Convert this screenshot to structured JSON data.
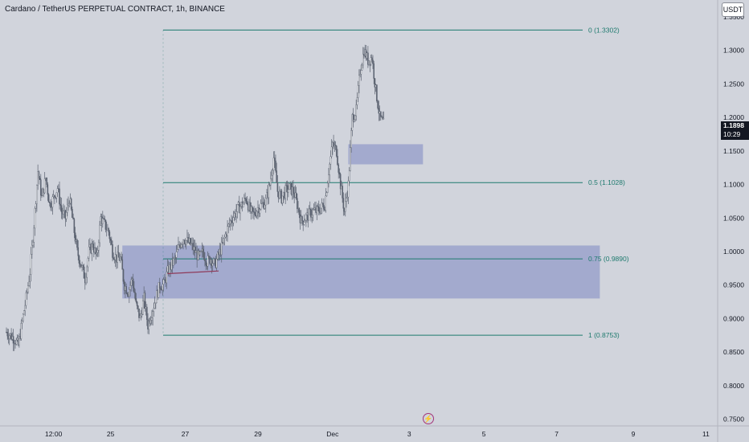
{
  "header": {
    "title": "Cardano / TetherUS PERPETUAL CONTRACT, 1h, BINANCE",
    "currency_button": "USDT"
  },
  "last_price": {
    "price": "1.1898",
    "countdown": "10:29"
  },
  "event_icon": {
    "name": "lightning-icon",
    "glyph": "⚡",
    "color": "#a3347a"
  },
  "colors": {
    "background": "#d1d4dc",
    "fib_line": "#1e7a6e",
    "zone_fill": "#7d86c2",
    "candle": "#5b6270",
    "trendline": "#8e3a5a"
  },
  "chart_data": {
    "type": "candlestick",
    "symbol": "Cardano / TetherUS PERPETUAL CONTRACT",
    "interval": "1h",
    "exchange": "BINANCE",
    "y_axis": {
      "ticks": [
        "0.7500",
        "0.8000",
        "0.8500",
        "0.9000",
        "0.9500",
        "1.0000",
        "1.0500",
        "1.1000",
        "1.1500",
        "1.2000",
        "1.2500",
        "1.3000",
        "1.3500"
      ],
      "range": [
        0.74,
        1.375
      ]
    },
    "x_axis": {
      "ticks": [
        "12:00",
        "25",
        "27",
        "29",
        "Dec",
        "3",
        "5",
        "7",
        "9",
        "11"
      ],
      "range_x": [
        0,
        180
      ]
    },
    "fibonacci": [
      {
        "label": "0 (1.3302)",
        "value": 1.3302
      },
      {
        "label": "0.5 (1.1028)",
        "value": 1.1028
      },
      {
        "label": "0.75 (0.9890)",
        "value": 0.989
      },
      {
        "label": "1 (0.8753)",
        "value": 0.8753
      }
    ],
    "zones": [
      {
        "from_x": 29.5,
        "to_x": 151,
        "low": 0.93,
        "high": 1.009
      },
      {
        "from_x": 87,
        "to_x": 106,
        "low": 1.13,
        "high": 1.16
      }
    ],
    "trendline": {
      "x1": 41,
      "y1": 0.967,
      "x2": 54,
      "y2": 0.971
    },
    "close_path": [
      [
        0,
        0.88
      ],
      [
        1,
        0.875
      ],
      [
        2,
        0.87
      ],
      [
        3,
        0.86
      ],
      [
        4,
        0.895
      ],
      [
        5,
        0.93
      ],
      [
        6,
        0.97
      ],
      [
        7,
        1.04
      ],
      [
        8,
        1.12
      ],
      [
        9,
        1.08
      ],
      [
        10,
        1.11
      ],
      [
        11,
        1.07
      ],
      [
        12,
        1.08
      ],
      [
        13,
        1.095
      ],
      [
        14,
        1.06
      ],
      [
        15,
        1.05
      ],
      [
        16,
        1.08
      ],
      [
        17,
        1.04
      ],
      [
        18,
        1.0
      ],
      [
        19,
        0.98
      ],
      [
        20,
        0.96
      ],
      [
        21,
        1.0
      ],
      [
        22,
        1.01
      ],
      [
        23,
        0.99
      ],
      [
        24,
        1.05
      ],
      [
        25,
        1.04
      ],
      [
        26,
        1.03
      ],
      [
        27,
        1.0
      ],
      [
        28,
        0.99
      ],
      [
        29,
        0.99
      ],
      [
        30,
        0.95
      ],
      [
        31,
        0.94
      ],
      [
        32,
        0.96
      ],
      [
        33,
        0.92
      ],
      [
        34,
        0.9
      ],
      [
        35,
        0.93
      ],
      [
        36,
        0.89
      ],
      [
        37,
        0.91
      ],
      [
        38,
        0.93
      ],
      [
        39,
        0.95
      ],
      [
        40,
        0.95
      ],
      [
        41,
        0.97
      ],
      [
        42,
        0.98
      ],
      [
        43,
        0.99
      ],
      [
        44,
        1.01
      ],
      [
        45,
        1.02
      ],
      [
        46,
        1.015
      ],
      [
        47,
        1.01
      ],
      [
        48,
        1.0
      ],
      [
        49,
        0.99
      ],
      [
        50,
        1.0
      ],
      [
        51,
        0.985
      ],
      [
        52,
        0.99
      ],
      [
        53,
        0.98
      ],
      [
        54,
        0.995
      ],
      [
        55,
        1.01
      ],
      [
        56,
        1.03
      ],
      [
        57,
        1.045
      ],
      [
        58,
        1.055
      ],
      [
        59,
        1.065
      ],
      [
        60,
        1.07
      ],
      [
        61,
        1.08
      ],
      [
        62,
        1.06
      ],
      [
        63,
        1.055
      ],
      [
        64,
        1.065
      ],
      [
        65,
        1.07
      ],
      [
        66,
        1.075
      ],
      [
        67,
        1.1
      ],
      [
        68,
        1.14
      ],
      [
        69,
        1.09
      ],
      [
        70,
        1.08
      ],
      [
        71,
        1.09
      ],
      [
        72,
        1.095
      ],
      [
        73,
        1.09
      ],
      [
        74,
        1.07
      ],
      [
        75,
        1.045
      ],
      [
        76,
        1.05
      ],
      [
        77,
        1.055
      ],
      [
        78,
        1.06
      ],
      [
        79,
        1.06
      ],
      [
        80,
        1.065
      ],
      [
        81,
        1.07
      ],
      [
        82,
        1.12
      ],
      [
        83,
        1.16
      ],
      [
        84,
        1.15
      ],
      [
        85,
        1.1
      ],
      [
        86,
        1.06
      ],
      [
        87,
        1.1
      ],
      [
        88,
        1.2
      ],
      [
        89,
        1.21
      ],
      [
        90,
        1.27
      ],
      [
        91,
        1.3
      ],
      [
        92,
        1.285
      ],
      [
        93,
        1.29
      ],
      [
        94,
        1.24
      ],
      [
        95,
        1.2
      ],
      [
        96,
        1.19
      ]
    ]
  }
}
